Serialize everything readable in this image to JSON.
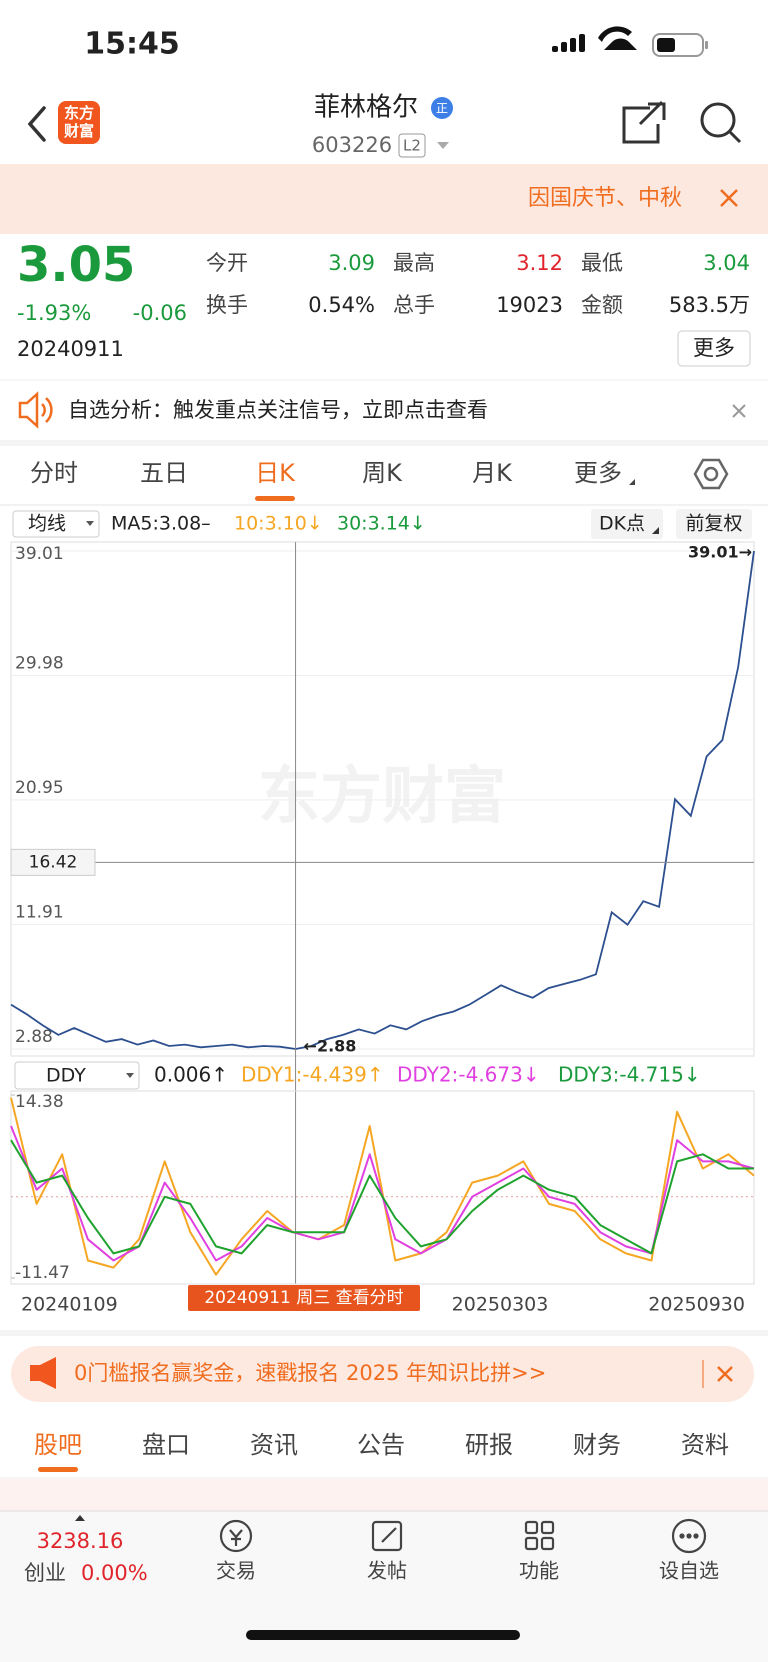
{
  "status_bar": {
    "time": "15:45"
  },
  "header": {
    "logo": "东方财富",
    "title": "菲林格尔",
    "badge": "正",
    "code": "603226",
    "level": "L2"
  },
  "banner": {
    "text": "因国庆节、中秋"
  },
  "quote": {
    "price": "3.05",
    "change_pct": "-1.93%",
    "change": "-0.06",
    "date": "20240911",
    "more": "更多",
    "stats": [
      {
        "label": "今开",
        "value": "3.09",
        "color": "#1a9a3c"
      },
      {
        "label": "最高",
        "value": "3.12",
        "color": "#e0242b"
      },
      {
        "label": "最低",
        "value": "3.04",
        "color": "#1a9a3c"
      },
      {
        "label": "换手",
        "value": "0.54%",
        "color": "#222222"
      },
      {
        "label": "总手",
        "value": "19023",
        "color": "#222222"
      },
      {
        "label": "金额",
        "value": "583.5万",
        "color": "#222222"
      }
    ]
  },
  "notice": {
    "text": "自选分析：触发重点关注信号，立即点击查看"
  },
  "period_tabs": {
    "items": [
      "分时",
      "五日",
      "日K",
      "周K",
      "月K",
      "更多"
    ],
    "selected": 2
  },
  "indicator_bar": {
    "select": "均线",
    "ma5": "MA5:3.08–",
    "ma10": "10:3.10↓",
    "ma30": "30:3.14↓",
    "dk": "DK点",
    "adjust": "前复权"
  },
  "kline": {
    "watermark": "东方财富",
    "ylim": [
      2.88,
      39.01
    ],
    "yticks": [
      39.01,
      29.98,
      20.95,
      11.91,
      2.88
    ],
    "crosshair": {
      "value": 16.42
    },
    "low": {
      "value": 2.88,
      "label": "←2.88"
    },
    "high": {
      "value": 39.01,
      "label": "39.01→"
    },
    "color": "#2c4f8f",
    "values": [
      6.1,
      5.4,
      4.6,
      3.9,
      4.4,
      3.9,
      3.4,
      3.6,
      3.2,
      3.5,
      3.1,
      3.2,
      3.0,
      3.1,
      3.2,
      3.0,
      3.1,
      3.05,
      2.88,
      3.1,
      3.6,
      3.9,
      4.3,
      4.0,
      4.6,
      4.3,
      4.9,
      5.3,
      5.6,
      6.1,
      6.8,
      7.5,
      7.0,
      6.6,
      7.3,
      7.6,
      7.9,
      8.3,
      12.8,
      11.9,
      13.6,
      13.2,
      21.0,
      19.8,
      24.1,
      25.3,
      30.6,
      39.01
    ]
  },
  "ddy": {
    "select": "DDY",
    "ddy": "0.006↑",
    "ddy1": "DDY1:-4.439↑",
    "ddy2": "DDY2:-4.673↓",
    "ddy3": "DDY3:-4.715↓",
    "ylim": [
      -11.47,
      14.38
    ],
    "yticks": [
      14.38,
      -11.47
    ],
    "series": [
      {
        "color": "#f5a623",
        "values": [
          14,
          -1,
          6,
          -9,
          -10,
          -6,
          5,
          -5,
          -11,
          -6,
          -2,
          -5,
          -6,
          -4,
          10,
          -9,
          -8,
          -5,
          2,
          3,
          5,
          -1,
          -2,
          -6,
          -8,
          -9,
          12,
          4,
          6,
          3
        ]
      },
      {
        "color": "#e040e0",
        "values": [
          10,
          1,
          4,
          -6,
          -9,
          -7,
          2,
          -3,
          -9,
          -7,
          -3,
          -5,
          -6,
          -5,
          6,
          -6,
          -8,
          -6,
          0,
          2,
          4,
          0,
          -1,
          -5,
          -7,
          -8,
          8,
          5,
          5,
          4
        ]
      },
      {
        "color": "#1fa32e",
        "values": [
          8,
          2,
          3,
          -3,
          -8,
          -7,
          0,
          -1,
          -7,
          -8,
          -4,
          -5,
          -5,
          -5,
          3,
          -3,
          -7,
          -6,
          -2,
          1,
          3,
          1,
          0,
          -4,
          -6,
          -8,
          5,
          6,
          4,
          4
        ]
      }
    ]
  },
  "dates": {
    "labels": [
      "20240109",
      "20250303",
      "20250930"
    ],
    "tooltip": "20240911 周三 查看分时"
  },
  "ad": {
    "text": "0门槛报名赢奖金，速戳报名 2025 年知识比拼>>"
  },
  "content_tabs": {
    "items": [
      "股吧",
      "盘口",
      "资讯",
      "公告",
      "研报",
      "财务",
      "资料"
    ],
    "selected": 0
  },
  "bottom_nav": {
    "index_value": "3238.16",
    "index_name": "创业",
    "index_change": "0.00%",
    "items": [
      "交易",
      "发帖",
      "功能",
      "设自选"
    ]
  }
}
